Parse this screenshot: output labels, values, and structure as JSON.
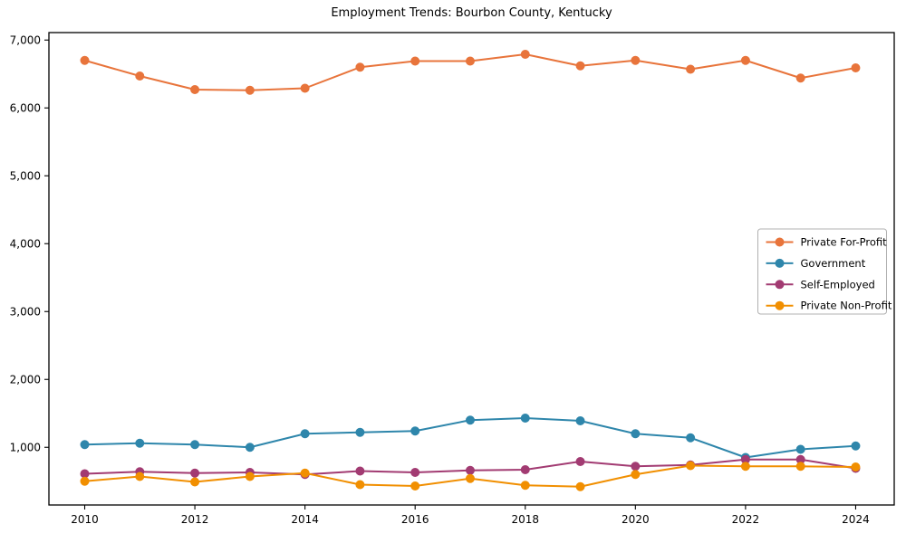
{
  "page": {
    "title": "Employment Trends: Bourbon County, Kentucky"
  },
  "chart_data": {
    "type": "line",
    "title": "Employment Trends: Bourbon County, Kentucky",
    "x": [
      2010,
      2011,
      2012,
      2013,
      2014,
      2015,
      2016,
      2017,
      2018,
      2019,
      2020,
      2021,
      2022,
      2023,
      2024
    ],
    "series": [
      {
        "name": "Private For-Profit",
        "color": "#E8743B",
        "values": [
          6700,
          6470,
          6270,
          6260,
          6290,
          6600,
          6690,
          6690,
          6790,
          6620,
          6700,
          6570,
          6700,
          6440,
          6590
        ]
      },
      {
        "name": "Government",
        "color": "#2E86AB",
        "values": [
          1040,
          1060,
          1040,
          1000,
          1200,
          1220,
          1240,
          1400,
          1430,
          1390,
          1200,
          1140,
          850,
          970,
          1020
        ]
      },
      {
        "name": "Self-Employed",
        "color": "#A23B72",
        "values": [
          610,
          640,
          620,
          630,
          600,
          650,
          630,
          660,
          670,
          790,
          720,
          740,
          820,
          820,
          690
        ]
      },
      {
        "name": "Private Non-Profit",
        "color": "#F18F01",
        "values": [
          500,
          570,
          490,
          570,
          620,
          450,
          430,
          540,
          440,
          420,
          600,
          730,
          720,
          720,
          710
        ]
      }
    ],
    "xlabel": "",
    "ylabel": "",
    "xlim": [
      2009.35,
      2024.7
    ],
    "ylim": [
      150,
      7110
    ],
    "xticks": [
      2010,
      2012,
      2014,
      2016,
      2018,
      2020,
      2022,
      2024
    ],
    "xtick_labels": [
      "2010",
      "2012",
      "2014",
      "2016",
      "2018",
      "2020",
      "2022",
      "2024"
    ],
    "yticks": [
      1000,
      2000,
      3000,
      4000,
      5000,
      6000,
      7000
    ],
    "ytick_labels": [
      "1,000",
      "2,000",
      "3,000",
      "4,000",
      "5,000",
      "6,000",
      "7,000"
    ],
    "grid": false,
    "legend_position": "center-right",
    "axis_color": "#000000",
    "marker": "circle"
  }
}
